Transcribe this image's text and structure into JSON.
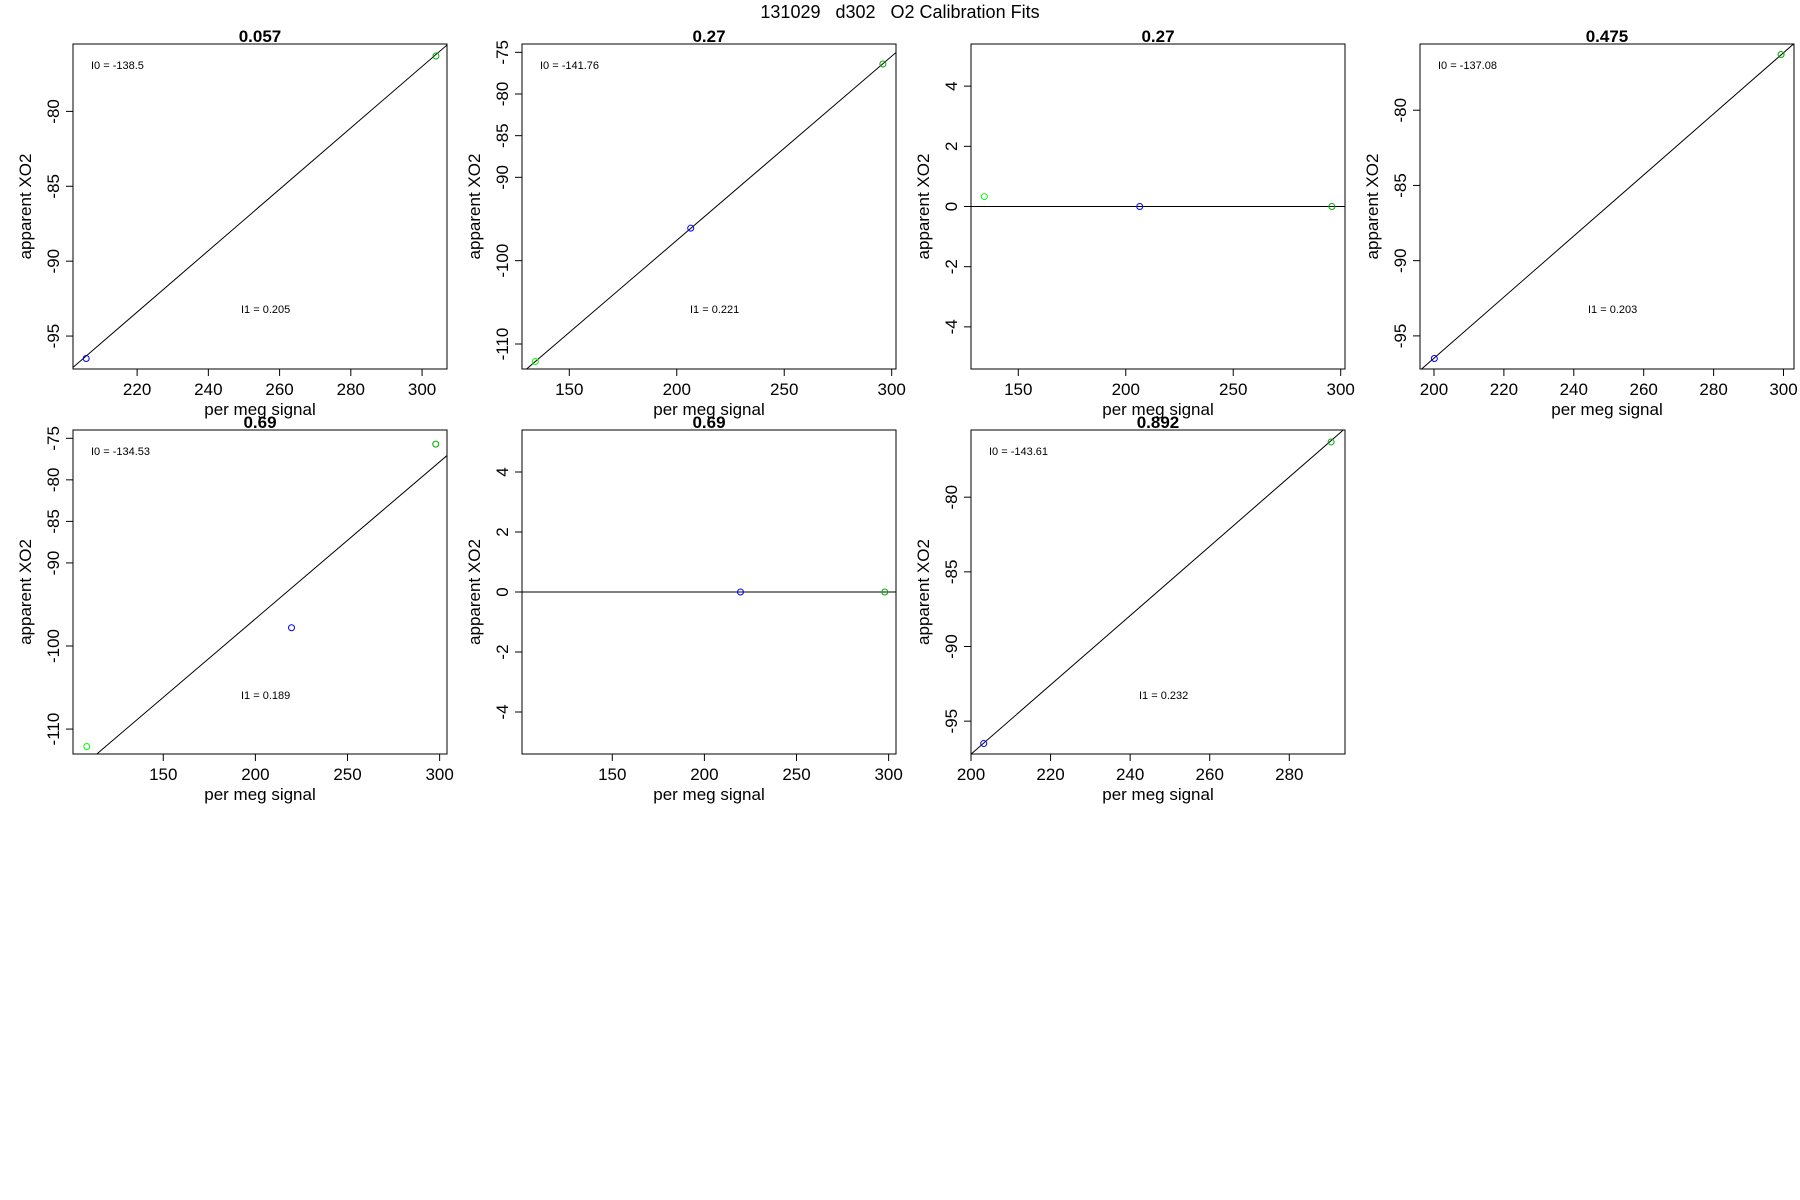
{
  "page": {
    "title": "131029   d302   O2 Calibration Fits"
  },
  "colors": {
    "axis": "#000000",
    "fit_line": "#000000",
    "point_blue": "#0000ff",
    "point_green": "#00aa00",
    "point_lightgreen": "#00ff00"
  },
  "chart_data": [
    {
      "type": "scatter",
      "title": "0.057",
      "xlabel": "per meg signal",
      "ylabel": "apparent XO2",
      "xlim": [
        202,
        307
      ],
      "ylim": [
        -97.2,
        -75.5
      ],
      "xticks": [
        220,
        240,
        260,
        280,
        300
      ],
      "yticks": [
        -95,
        -90,
        -85,
        -80
      ],
      "points": [
        {
          "x": 205.7,
          "y": -96.5,
          "color": "point_blue"
        },
        {
          "x": 303.9,
          "y": -76.3,
          "color": "point_green"
        }
      ],
      "fit": {
        "intercept": -138.5,
        "slope": 0.205
      },
      "annotations": {
        "i0_label": "I0 =  -138.5",
        "i1_label": "I1 =  0.205"
      },
      "grid": false
    },
    {
      "type": "scatter",
      "title": "0.27",
      "xlabel": "per meg signal",
      "ylabel": "apparent XO2",
      "xlim": [
        128,
        302
      ],
      "ylim": [
        -113,
        -74
      ],
      "xticks": [
        150,
        200,
        250,
        300
      ],
      "yticks": [
        -110,
        -100,
        -90,
        -85,
        -80,
        -75
      ],
      "points": [
        {
          "x": 134.2,
          "y": -112.1,
          "color": "point_lightgreen"
        },
        {
          "x": 206.5,
          "y": -96.1,
          "color": "point_blue"
        },
        {
          "x": 295.9,
          "y": -76.4,
          "color": "point_green"
        }
      ],
      "fit": {
        "intercept": -141.76,
        "slope": 0.221
      },
      "annotations": {
        "i0_label": "I0 =  -141.76",
        "i1_label": "I1 =  0.221"
      },
      "grid": false
    },
    {
      "type": "scatter",
      "title": "0.27",
      "xlabel": "per meg signal",
      "ylabel": "apparent XO2",
      "xlim": [
        128,
        302
      ],
      "ylim": [
        -5.4,
        5.4
      ],
      "xticks": [
        150,
        200,
        250,
        300
      ],
      "yticks": [
        -4,
        -2,
        0,
        2,
        4
      ],
      "points": [
        {
          "x": 134.2,
          "y": 0.33,
          "color": "point_lightgreen"
        },
        {
          "x": 206.5,
          "y": 0,
          "color": "point_blue"
        },
        {
          "x": 295.9,
          "y": 0,
          "color": "point_green"
        }
      ],
      "fit": {
        "intercept": 0,
        "slope": 0
      },
      "annotations": {
        "i0_label": "",
        "i1_label": ""
      },
      "grid": false
    },
    {
      "type": "scatter",
      "title": "0.475",
      "xlabel": "per meg signal",
      "ylabel": "apparent XO2",
      "xlim": [
        196,
        303
      ],
      "ylim": [
        -97.2,
        -75.6
      ],
      "xticks": [
        200,
        220,
        240,
        260,
        280,
        300
      ],
      "yticks": [
        -95,
        -90,
        -85,
        -80
      ],
      "points": [
        {
          "x": 200.1,
          "y": -96.5,
          "color": "point_blue"
        },
        {
          "x": 299.3,
          "y": -76.3,
          "color": "point_green"
        }
      ],
      "fit": {
        "intercept": -137.08,
        "slope": 0.203
      },
      "annotations": {
        "i0_label": "I0 =  -137.08",
        "i1_label": "I1 =  0.203"
      },
      "grid": false
    },
    {
      "type": "scatter",
      "title": "0.69",
      "xlabel": "per meg signal",
      "ylabel": "apparent XO2",
      "xlim": [
        101,
        304
      ],
      "ylim": [
        -113,
        -74
      ],
      "xticks": [
        150,
        200,
        250,
        300
      ],
      "yticks": [
        -110,
        -100,
        -90,
        -85,
        -80,
        -75
      ],
      "points": [
        {
          "x": 108.5,
          "y": -112.1,
          "color": "point_lightgreen"
        },
        {
          "x": 219.6,
          "y": -97.8,
          "color": "point_blue"
        },
        {
          "x": 297.9,
          "y": -75.7,
          "color": "point_green"
        }
      ],
      "fit": {
        "intercept": -134.53,
        "slope": 0.189
      },
      "annotations": {
        "i0_label": "I0 =  -134.53",
        "i1_label": "I1 =  0.189"
      },
      "grid": false
    },
    {
      "type": "scatter",
      "title": "0.69",
      "xlabel": "per meg signal",
      "ylabel": "apparent XO2",
      "xlim": [
        101,
        304
      ],
      "ylim": [
        -5.4,
        5.4
      ],
      "xticks": [
        150,
        200,
        250,
        300
      ],
      "yticks": [
        -4,
        -2,
        0,
        2,
        4
      ],
      "points": [
        {
          "x": 219.6,
          "y": 0,
          "color": "point_blue"
        },
        {
          "x": 297.9,
          "y": 0,
          "color": "point_green"
        }
      ],
      "fit": {
        "intercept": 0,
        "slope": 0
      },
      "annotations": {
        "i0_label": "",
        "i1_label": ""
      },
      "grid": false
    },
    {
      "type": "scatter",
      "title": "0.892",
      "xlabel": "per meg signal",
      "ylabel": "apparent XO2",
      "xlim": [
        200,
        294
      ],
      "ylim": [
        -97.2,
        -75.5
      ],
      "xticks": [
        200,
        220,
        240,
        260,
        280
      ],
      "yticks": [
        -95,
        -90,
        -85,
        -80
      ],
      "points": [
        {
          "x": 203.2,
          "y": -96.5,
          "color": "point_blue"
        },
        {
          "x": 290.5,
          "y": -76.3,
          "color": "point_green"
        }
      ],
      "fit": {
        "intercept": -143.61,
        "slope": 0.232
      },
      "annotations": {
        "i0_label": "I0 =  -143.61",
        "i1_label": "I1 =  0.232"
      },
      "grid": false
    }
  ]
}
